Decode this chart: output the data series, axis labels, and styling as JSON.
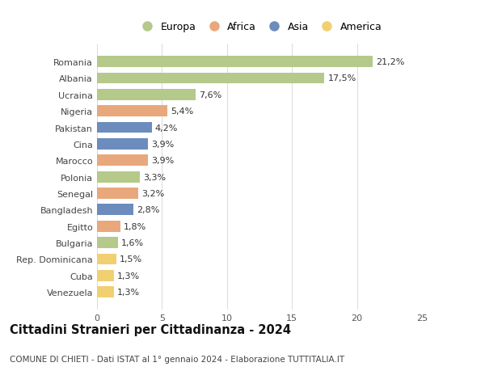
{
  "categories": [
    "Romania",
    "Albania",
    "Ucraina",
    "Nigeria",
    "Pakistan",
    "Cina",
    "Marocco",
    "Polonia",
    "Senegal",
    "Bangladesh",
    "Egitto",
    "Bulgaria",
    "Rep. Dominicana",
    "Cuba",
    "Venezuela"
  ],
  "values": [
    21.2,
    17.5,
    7.6,
    5.4,
    4.2,
    3.9,
    3.9,
    3.3,
    3.2,
    2.8,
    1.8,
    1.6,
    1.5,
    1.3,
    1.3
  ],
  "labels": [
    "21,2%",
    "17,5%",
    "7,6%",
    "5,4%",
    "4,2%",
    "3,9%",
    "3,9%",
    "3,3%",
    "3,2%",
    "2,8%",
    "1,8%",
    "1,6%",
    "1,5%",
    "1,3%",
    "1,3%"
  ],
  "colors": [
    "#b5c98a",
    "#b5c98a",
    "#b5c98a",
    "#e8a87c",
    "#6b8cbd",
    "#6b8cbd",
    "#e8a87c",
    "#b5c98a",
    "#e8a87c",
    "#6b8cbd",
    "#e8a87c",
    "#b5c98a",
    "#f0d070",
    "#f0d070",
    "#f0d070"
  ],
  "legend_labels": [
    "Europa",
    "Africa",
    "Asia",
    "America"
  ],
  "legend_colors": [
    "#b5c98a",
    "#e8a87c",
    "#6b8cbd",
    "#f0d070"
  ],
  "xlim": [
    0,
    25
  ],
  "xticks": [
    0,
    5,
    10,
    15,
    20,
    25
  ],
  "title": "Cittadini Stranieri per Cittadinanza - 2024",
  "subtitle": "COMUNE DI CHIETI - Dati ISTAT al 1° gennaio 2024 - Elaborazione TUTTITALIA.IT",
  "bg_color": "#ffffff",
  "bar_height": 0.68,
  "grid_color": "#dddddd",
  "label_fontsize": 8.0,
  "tick_fontsize": 8.0,
  "title_fontsize": 10.5,
  "subtitle_fontsize": 7.5,
  "legend_fontsize": 9.0
}
